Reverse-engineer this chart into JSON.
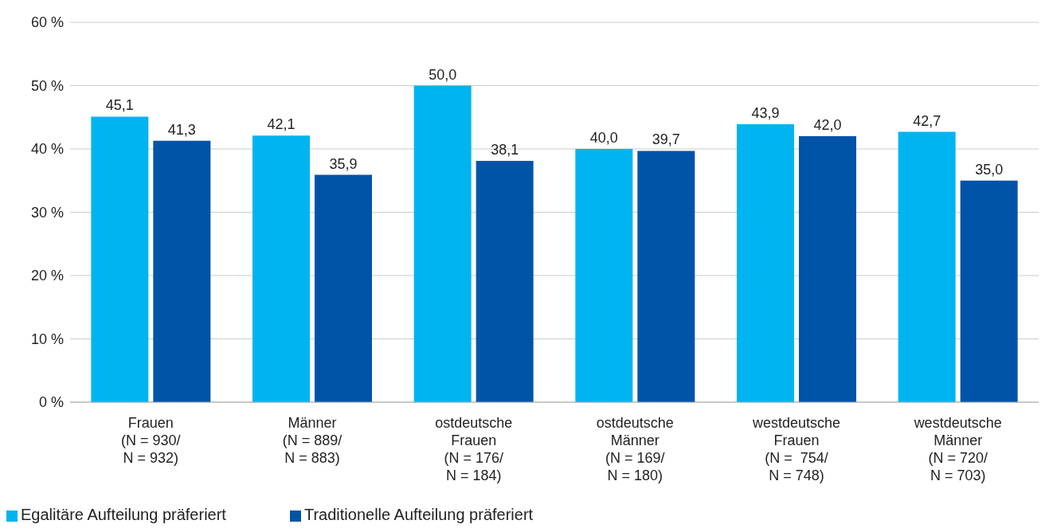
{
  "chart_data": {
    "type": "bar",
    "categories": [
      "Frauen\n(N = 930/\nN = 932)",
      "Männer\n(N = 889/\nN = 883)",
      "ostdeutsche\nFrauen\n(N = 176/\nN = 184)",
      "ostdeutsche\nMänner\n(N = 169/\nN = 180)",
      "westdeutsche\nFrauen\n(N =  754/\nN = 748)",
      "westdeutsche\nMänner\n(N = 720/\nN = 703)"
    ],
    "series": [
      {
        "name": "Egalitäre Aufteilung präferiert",
        "color": "#00b4f0",
        "values": [
          45.1,
          42.1,
          50.0,
          40.0,
          43.9,
          42.7
        ],
        "value_labels": [
          "45,1",
          "42,1",
          "50,0",
          "40,0",
          "43,9",
          "42,7"
        ]
      },
      {
        "name": "Traditionelle Aufteilung präferiert",
        "color": "#0054a8",
        "values": [
          41.3,
          35.9,
          38.1,
          39.7,
          42.0,
          35.0
        ],
        "value_labels": [
          "41,3",
          "35,9",
          "38,1",
          "39,7",
          "42,0",
          "35,0"
        ]
      }
    ],
    "ylim": [
      0,
      60
    ],
    "yticks": [
      {
        "value": 0,
        "label": "0 %"
      },
      {
        "value": 10,
        "label": "10 %"
      },
      {
        "value": 20,
        "label": "20 %"
      },
      {
        "value": 30,
        "label": "30 %"
      },
      {
        "value": 40,
        "label": "40 %"
      },
      {
        "value": 50,
        "label": "50 %"
      },
      {
        "value": 60,
        "label": "60 %"
      }
    ],
    "grid": "y",
    "legend": "bottom left"
  }
}
